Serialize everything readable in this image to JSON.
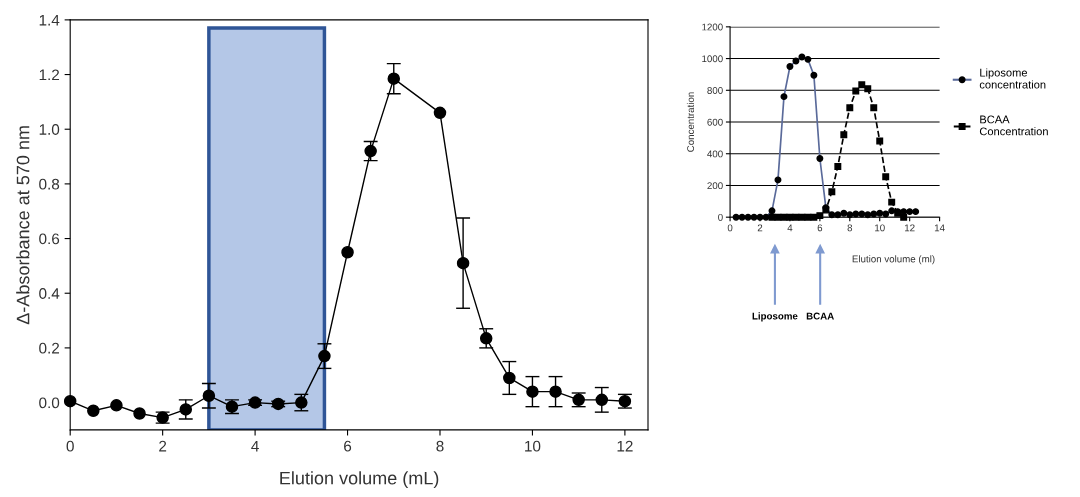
{
  "chart_data": [
    {
      "type": "line",
      "xlabel": "Elution volume (mL)",
      "ylabel": "Δ-Absorbance at 570 nm",
      "xlim": [
        0,
        12.5
      ],
      "xticks": [
        0,
        2,
        4,
        6,
        8,
        10,
        12
      ],
      "ylim": [
        -0.1,
        1.4
      ],
      "yticks": [
        {
          "value": 0,
          "label": "0.0"
        },
        0.2,
        0.4,
        0.6,
        0.8,
        {
          "value": 1,
          "label": "1.0"
        },
        1.2,
        1.4
      ],
      "grid": false,
      "legend": false,
      "marker": "circle",
      "line_style": "solid",
      "x": [
        0,
        0.5,
        1,
        1.5,
        2,
        2.5,
        3,
        3.5,
        4,
        4.5,
        5,
        5.5,
        6,
        6.5,
        7,
        8,
        8.5,
        9,
        9.5,
        10,
        10.5,
        11,
        11.5,
        12
      ],
      "series": [
        {
          "color": "#000000",
          "values": [
            0.005,
            -0.03,
            -0.01,
            -0.04,
            -0.055,
            -0.025,
            0.025,
            -0.015,
            0.0,
            -0.005,
            0.0,
            0.17,
            0.55,
            0.92,
            1.185,
            1.06,
            0.51,
            0.235,
            0.09,
            0.04,
            0.04,
            0.01,
            0.01,
            0.005
          ],
          "errors": [
            null,
            null,
            null,
            null,
            0.02,
            0.035,
            0.045,
            0.025,
            0.01,
            0.01,
            0.03,
            0.045,
            null,
            0.035,
            0.055,
            null,
            0.165,
            0.035,
            0.06,
            0.055,
            0.055,
            0.025,
            0.045,
            0.025
          ]
        }
      ],
      "bands": [
        {
          "axis": "x",
          "from": 3,
          "to": 5.5,
          "color": "#b4c7e7"
        }
      ]
    },
    {
      "type": "line",
      "xlabel": "Elution volume (ml)",
      "ylabel": "Concentration",
      "xlim": [
        0,
        14
      ],
      "xticks": [
        0,
        2,
        4,
        6,
        8,
        10,
        12,
        14
      ],
      "ylim": [
        0,
        1200
      ],
      "yticks": [
        0,
        200,
        400,
        600,
        800,
        1000,
        1200
      ],
      "grid": "y",
      "legend": "right",
      "x": [
        0.4,
        0.8,
        1.2,
        1.6,
        2.0,
        2.4,
        2.8,
        3.2,
        3.6,
        4.0,
        4.4,
        4.8,
        5.2,
        5.6,
        6.0,
        6.4,
        6.8,
        7.2,
        7.6,
        8.0,
        8.4,
        8.8,
        9.2,
        9.6,
        10.0,
        10.4,
        10.8,
        11.2,
        11.6,
        12.0,
        12.4
      ],
      "series": [
        {
          "name": "Liposome\nconcentration",
          "color": "#5a6a9a",
          "marker": "circle",
          "line_style": "solid",
          "values": [
            0,
            0,
            0,
            0,
            0,
            0,
            40,
            235,
            760,
            950,
            985,
            1010,
            995,
            895,
            370,
            60,
            15,
            15,
            25,
            15,
            20,
            20,
            15,
            20,
            25,
            20,
            40,
            35,
            35,
            35,
            35
          ]
        },
        {
          "name": "BCAA\nConcentration",
          "color": "#000000",
          "marker": "square",
          "line_style": "dashed",
          "values": [
            null,
            null,
            null,
            null,
            null,
            null,
            0,
            0,
            0,
            0,
            0,
            0,
            0,
            0,
            10,
            45,
            160,
            320,
            520,
            690,
            795,
            835,
            810,
            690,
            480,
            255,
            95,
            25,
            0,
            null,
            null
          ]
        }
      ],
      "annotations": [
        "Liposome",
        "BCAA"
      ]
    }
  ]
}
